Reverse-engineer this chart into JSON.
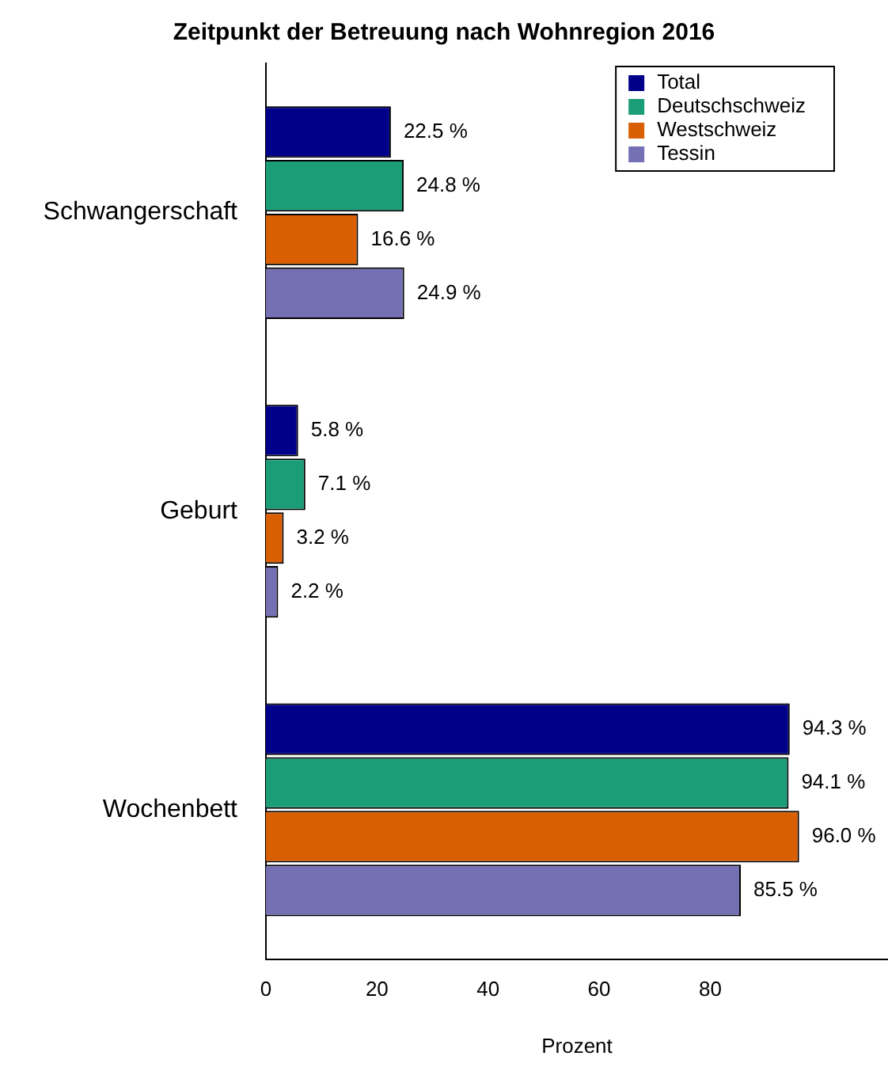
{
  "chart_data": {
    "type": "bar",
    "orientation": "horizontal",
    "title": "Zeitpunkt der Betreuung nach Wohnregion 2016",
    "xlabel": "Prozent",
    "categories": [
      "Schwangerschaft",
      "Geburt",
      "Wochenbett"
    ],
    "series": [
      {
        "name": "Total",
        "color": "#00008b",
        "values": [
          22.5,
          5.8,
          94.3
        ],
        "value_labels": [
          "22.5 %",
          "5.8 %",
          "94.3 %"
        ]
      },
      {
        "name": "Deutschschweiz",
        "color": "#1b9e77",
        "values": [
          24.8,
          7.1,
          94.1
        ],
        "value_labels": [
          "24.8 %",
          "7.1 %",
          "94.1 %"
        ]
      },
      {
        "name": "Westschweiz",
        "color": "#d95f02",
        "values": [
          16.6,
          3.2,
          96.0
        ],
        "value_labels": [
          "16.6 %",
          "3.2 %",
          "96.0 %"
        ]
      },
      {
        "name": "Tessin",
        "color": "#7570b3",
        "values": [
          24.9,
          2.2,
          85.5
        ],
        "value_labels": [
          "24.9 %",
          "2.2 %",
          "85.5 %"
        ]
      }
    ],
    "xlim": [
      0,
      112
    ],
    "xticks": [
      0,
      20,
      40,
      60,
      80
    ],
    "grid": false,
    "legend": "top right"
  }
}
